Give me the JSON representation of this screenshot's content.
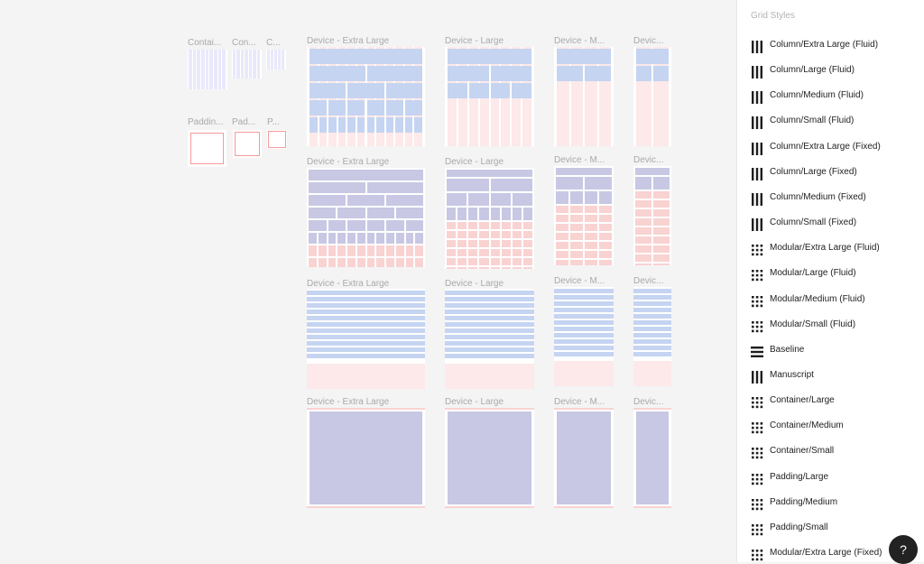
{
  "canvas": {
    "small_labels": [
      "Contai...",
      "Con...",
      "C...",
      "Paddin...",
      "Pad...",
      "P..."
    ],
    "device_labels": {
      "xl": "Device - Extra Large",
      "l": "Device - Large",
      "m": "Device - M...",
      "s": "Devic..."
    }
  },
  "panel": {
    "title": "Grid Styles",
    "items": [
      {
        "label": "Column/Extra Large (Fluid)",
        "icon": "column-grid-icon"
      },
      {
        "label": "Column/Large (Fluid)",
        "icon": "column-grid-icon"
      },
      {
        "label": "Column/Medium (Fluid)",
        "icon": "column-grid-icon"
      },
      {
        "label": "Column/Small (Fluid)",
        "icon": "column-grid-icon"
      },
      {
        "label": "Column/Extra Large (Fixed)",
        "icon": "column-grid-icon"
      },
      {
        "label": "Column/Large (Fixed)",
        "icon": "column-grid-icon"
      },
      {
        "label": "Column/Medium (Fixed)",
        "icon": "column-grid-icon"
      },
      {
        "label": "Column/Small (Fixed)",
        "icon": "column-grid-icon"
      },
      {
        "label": "Modular/Extra Large (Fluid)",
        "icon": "modular-grid-icon"
      },
      {
        "label": "Modular/Large (Fluid)",
        "icon": "modular-grid-icon"
      },
      {
        "label": "Modular/Medium (Fluid)",
        "icon": "modular-grid-icon"
      },
      {
        "label": "Modular/Small (Fluid)",
        "icon": "modular-grid-icon"
      },
      {
        "label": "Baseline",
        "icon": "baseline-grid-icon"
      },
      {
        "label": "Manuscript",
        "icon": "column-grid-icon"
      },
      {
        "label": "Container/Large",
        "icon": "modular-grid-icon"
      },
      {
        "label": "Container/Medium",
        "icon": "modular-grid-icon"
      },
      {
        "label": "Container/Small",
        "icon": "modular-grid-icon"
      },
      {
        "label": "Padding/Large",
        "icon": "modular-grid-icon"
      },
      {
        "label": "Padding/Medium",
        "icon": "modular-grid-icon"
      },
      {
        "label": "Padding/Small",
        "icon": "modular-grid-icon"
      },
      {
        "label": "Modular/Extra Large (Fixed)",
        "icon": "modular-grid-icon"
      }
    ]
  },
  "help": {
    "label": "?"
  },
  "colors": {
    "grid_blue": "#c5d4f1",
    "grid_purple": "#c8c8e4",
    "grid_pink": "#fde9e9",
    "row_pink": "#f9d2d2",
    "padding_red": "#f59a9a"
  }
}
